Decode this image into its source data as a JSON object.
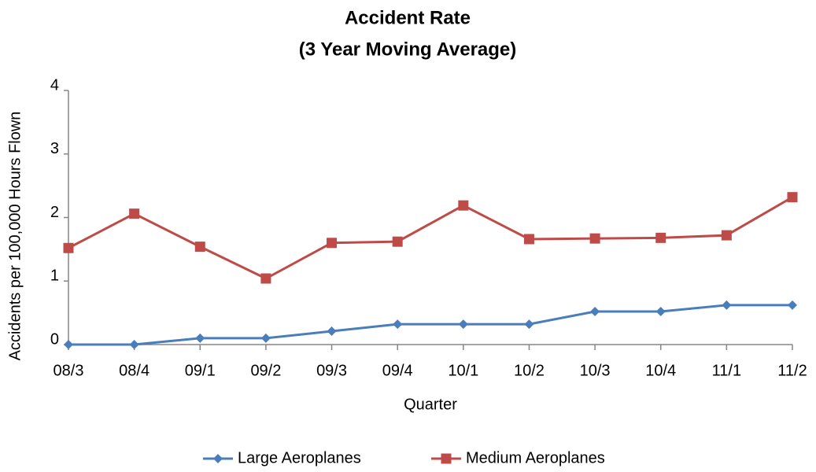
{
  "chart_data": {
    "type": "line",
    "title": "Accident Rate",
    "subtitle": "(3 Year Moving Average)",
    "x_label": "Quarter",
    "y_label": "Accidents per 100,000 Hours Flown",
    "categories": [
      "08/3",
      "08/4",
      "09/1",
      "09/2",
      "09/3",
      "09/4",
      "10/1",
      "10/2",
      "10/3",
      "10/4",
      "11/1",
      "11/2"
    ],
    "series": [
      {
        "name": "Large Aeroplanes",
        "color": "#4a7ebb",
        "marker": "diamond",
        "values": [
          0,
          0,
          0.1,
          0.1,
          0.21,
          0.32,
          0.32,
          0.32,
          0.52,
          0.52,
          0.62,
          0.62
        ]
      },
      {
        "name": "Medium Aeroplanes",
        "color": "#be4b48",
        "marker": "square",
        "values": [
          1.52,
          2.06,
          1.54,
          1.04,
          1.6,
          1.62,
          2.19,
          1.66,
          1.67,
          1.68,
          1.72,
          2.32
        ]
      }
    ],
    "ylim": [
      0,
      4
    ],
    "yticks": [
      0,
      1,
      2,
      3,
      4
    ],
    "grid": false,
    "legend": "bottom"
  }
}
